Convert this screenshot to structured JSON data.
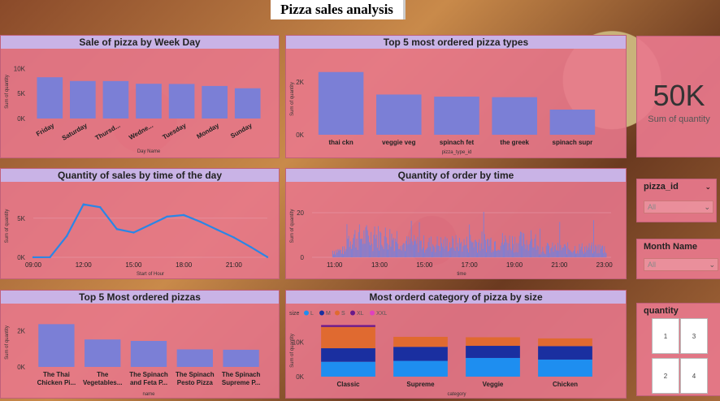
{
  "title": "Pizza sales analysis",
  "kpi": {
    "value": "50K",
    "label": "Sum of quantity"
  },
  "slicers": {
    "pizza_id": {
      "title": "pizza_id",
      "value": "All"
    },
    "month": {
      "title": "Month Name",
      "value": "All"
    },
    "quantity": {
      "title": "quantity",
      "tiles": [
        "1",
        "3",
        "2",
        "4"
      ]
    }
  },
  "charts": [
    {
      "title": "Sale of pizza by Week Day",
      "type": "bar",
      "ylabel": "Sum of quantity",
      "xlabel": "Day Name",
      "yticks": [
        "0K",
        "5K",
        "10K"
      ],
      "yticks_v": [
        0,
        5000,
        10000
      ],
      "ymax": 10700,
      "categories": [
        "Friday",
        "Saturday",
        "Thursd...",
        "Wedne...",
        "Tuesday",
        "Monday",
        "Sunday"
      ],
      "values": [
        8240,
        7490,
        7480,
        6940,
        6900,
        6500,
        6040
      ]
    },
    {
      "title": "Top 5 most ordered pizza types",
      "type": "bar",
      "ylabel": "Sum of quantity",
      "xlabel": "pizza_type_id",
      "yticks": [
        "0K",
        "2K"
      ],
      "yticks_v": [
        0,
        2000
      ],
      "ymax": 2700,
      "categories": [
        "thai ckn",
        "veggie veg",
        "spinach fet",
        "the greek",
        "spinach supr"
      ],
      "values": [
        2370,
        1520,
        1440,
        1420,
        950
      ]
    },
    {
      "title": "Quantity of sales by time of the day",
      "type": "line",
      "ylabel": "Sum of quantity",
      "xlabel": "Start of Hour",
      "yticks": [
        "0K",
        "5K"
      ],
      "yticks_v": [
        0,
        5000
      ],
      "ymax": 8000,
      "xticks": [
        "09:00",
        "12:00",
        "15:00",
        "18:00",
        "21:00"
      ],
      "xticks_v": [
        9,
        12,
        15,
        18,
        21
      ],
      "xmin": 9,
      "xmax": 23,
      "x": [
        9,
        10,
        11,
        12,
        13,
        14,
        15,
        16,
        17,
        18,
        19,
        20,
        21,
        22,
        23
      ],
      "values": [
        4,
        17,
        2720,
        6780,
        6410,
        3610,
        3170,
        4180,
        5210,
        5410,
        4550,
        3530,
        2540,
        1330,
        28
      ]
    },
    {
      "title": "Quantity of order by time",
      "type": "bar-dense",
      "ylabel": "Sum of quantity",
      "xlabel": "time",
      "yticks": [
        "0",
        "20"
      ],
      "yticks_v": [
        0,
        20
      ],
      "ymax": 28,
      "xticks": [
        "11:00",
        "13:00",
        "15:00",
        "17:00",
        "19:00",
        "21:00",
        "23:00"
      ],
      "xticks_v": [
        11,
        13,
        15,
        17,
        19,
        21,
        23
      ],
      "xmin": 10,
      "xmax": 23.3
    },
    {
      "title": "Top 5 Most ordered pizzas",
      "type": "bar",
      "ylabel": "Sum of quantity",
      "xlabel": "name",
      "yticks": [
        "0K",
        "2K"
      ],
      "yticks_v": [
        0,
        2000
      ],
      "ymax": 2700,
      "categories": [
        "The Thai Chicken Pi...",
        "The Vegetables...",
        "The Spinach and Feta P...",
        "The Spinach Pesto Pizza",
        "The Spinach Supreme P..."
      ],
      "values": [
        2370,
        1520,
        1440,
        970,
        950
      ]
    },
    {
      "title": "Most orderd category of pizza by size",
      "type": "stacked",
      "ylabel": "Sum of quantity",
      "xlabel": "category",
      "yticks": [
        "0K",
        "10K"
      ],
      "yticks_v": [
        0,
        10000
      ],
      "ymax": 15000,
      "legend_title": "size",
      "legend": [
        {
          "name": "L",
          "color": "#1e8ef0"
        },
        {
          "name": "M",
          "color": "#1a2fa0"
        },
        {
          "name": "S",
          "color": "#e06a30"
        },
        {
          "name": "XL",
          "color": "#6a1a8a"
        },
        {
          "name": "XXL",
          "color": "#e040c0"
        }
      ],
      "categories": [
        "Classic",
        "Supreme",
        "Veggie",
        "Chicken"
      ],
      "series": [
        {
          "name": "L",
          "values": [
            4300,
            4560,
            5400,
            4930
          ]
        },
        {
          "name": "M",
          "values": [
            3900,
            4050,
            3500,
            3890
          ]
        },
        {
          "name": "S",
          "values": [
            6140,
            2880,
            2470,
            2220
          ]
        },
        {
          "name": "XL",
          "values": [
            550,
            0,
            0,
            0
          ]
        },
        {
          "name": "XXL",
          "values": [
            28,
            0,
            0,
            0
          ]
        }
      ]
    }
  ]
}
